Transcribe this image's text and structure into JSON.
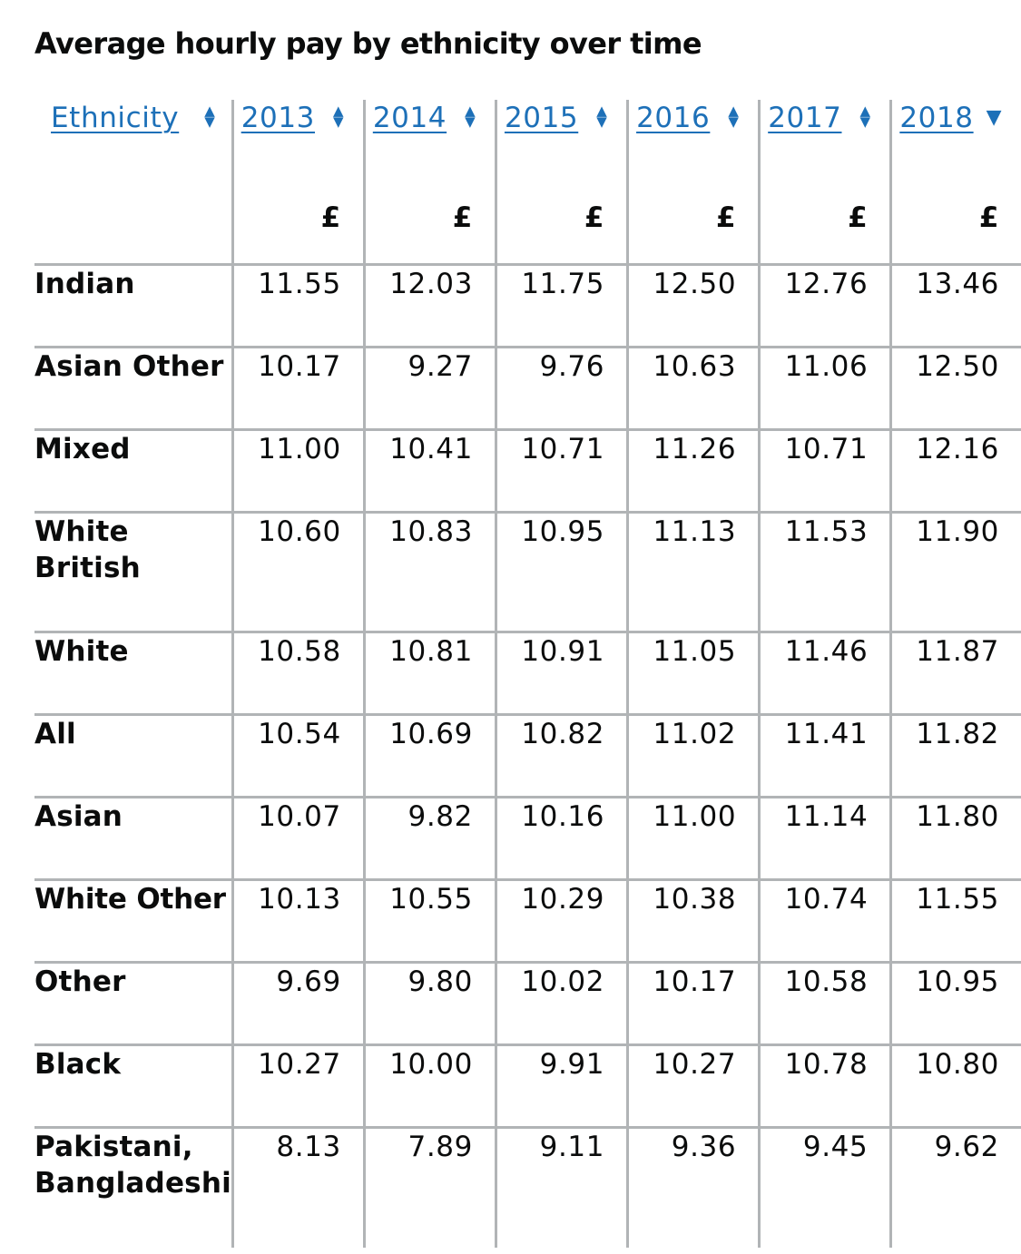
{
  "page": {
    "title": "Average hourly pay by ethnicity over time"
  },
  "table": {
    "header": {
      "ethnicity_label": "Ethnicity",
      "years": [
        "2013",
        "2014",
        "2015",
        "2016",
        "2017",
        "2018"
      ],
      "unit": "£",
      "sorted_column": "2018",
      "sort_direction": "descending"
    },
    "rows": [
      {
        "name": "Indian",
        "values": [
          "11.55",
          "12.03",
          "11.75",
          "12.50",
          "12.76",
          "13.46"
        ]
      },
      {
        "name": "Asian Other",
        "values": [
          "10.17",
          "9.27",
          "9.76",
          "10.63",
          "11.06",
          "12.50"
        ]
      },
      {
        "name": "Mixed",
        "values": [
          "11.00",
          "10.41",
          "10.71",
          "11.26",
          "10.71",
          "12.16"
        ]
      },
      {
        "name": "White British",
        "values": [
          "10.60",
          "10.83",
          "10.95",
          "11.13",
          "11.53",
          "11.90"
        ]
      },
      {
        "name": "White",
        "values": [
          "10.58",
          "10.81",
          "10.91",
          "11.05",
          "11.46",
          "11.87"
        ]
      },
      {
        "name": "All",
        "values": [
          "10.54",
          "10.69",
          "10.82",
          "11.02",
          "11.41",
          "11.82"
        ]
      },
      {
        "name": "Asian",
        "values": [
          "10.07",
          "9.82",
          "10.16",
          "11.00",
          "11.14",
          "11.80"
        ]
      },
      {
        "name": "White Other",
        "values": [
          "10.13",
          "10.55",
          "10.29",
          "10.38",
          "10.74",
          "11.55"
        ]
      },
      {
        "name": "Other",
        "values": [
          "9.69",
          "9.80",
          "10.02",
          "10.17",
          "10.58",
          "10.95"
        ]
      },
      {
        "name": "Black",
        "values": [
          "10.27",
          "10.00",
          "9.91",
          "10.27",
          "10.78",
          "10.80"
        ]
      },
      {
        "name": "Pakistani, Bangladeshi",
        "values": [
          "8.13",
          "7.89",
          "9.11",
          "9.36",
          "9.45",
          "9.62"
        ]
      }
    ]
  },
  "colors": {
    "link": "#1d70b8",
    "grid": "#b1b4b6",
    "text": "#0b0c0c"
  },
  "icons": {
    "sortable": "sort-up-down-icon",
    "sorted_desc": "sort-descending-icon"
  }
}
